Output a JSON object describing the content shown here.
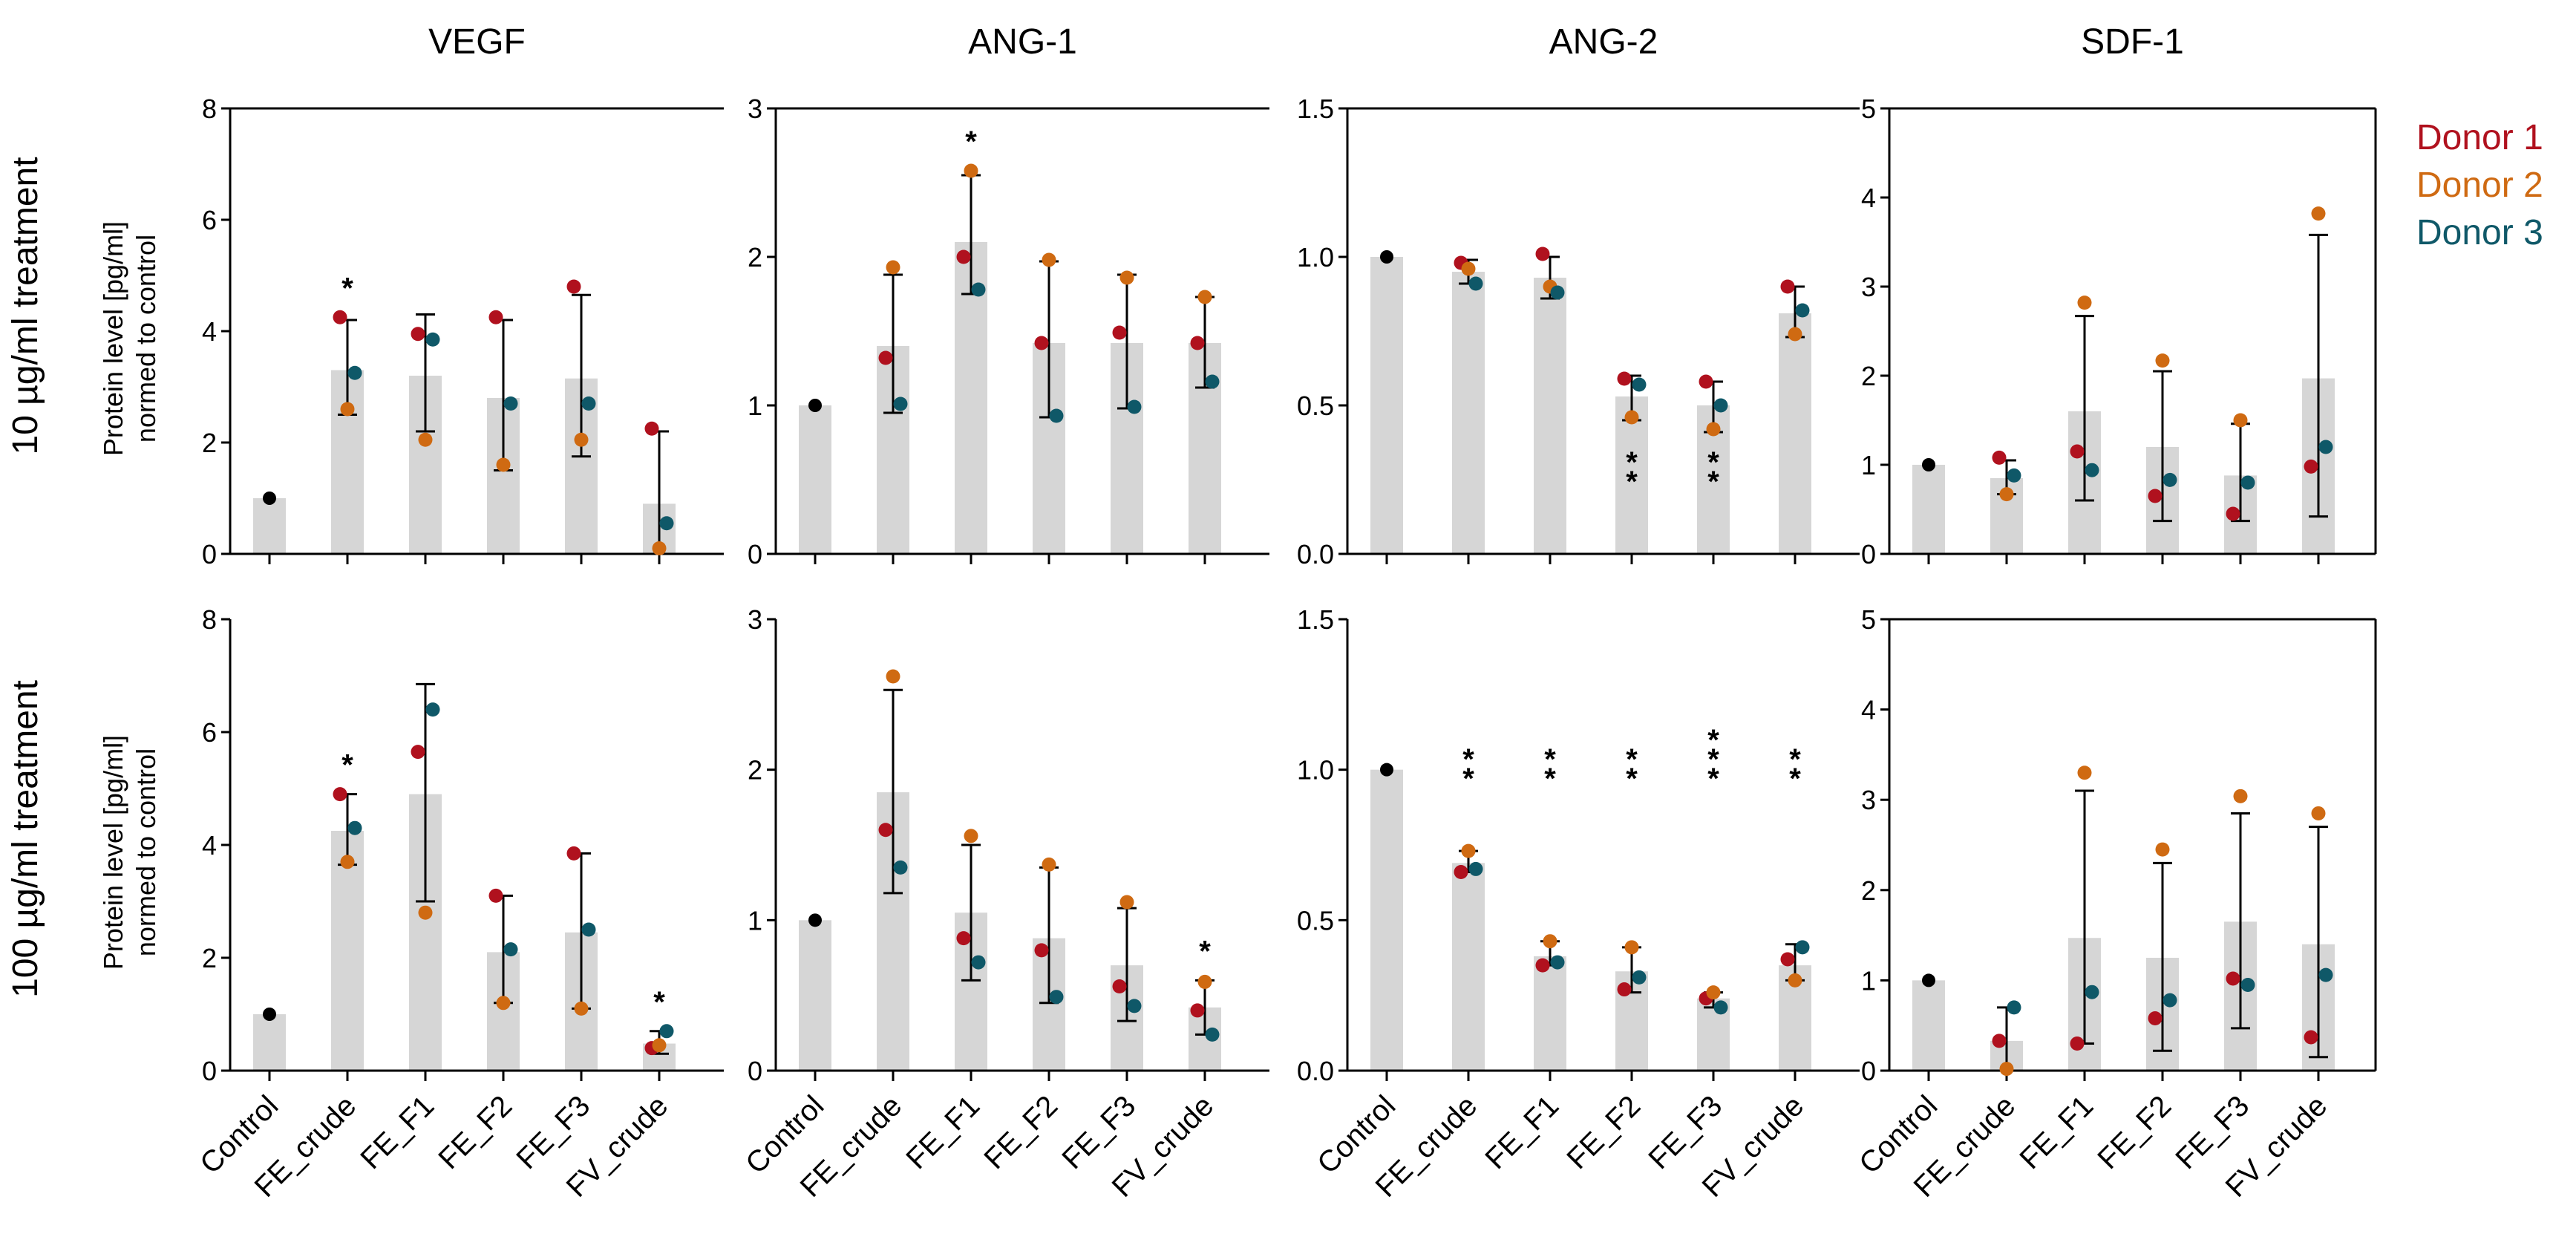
{
  "figure": {
    "row_labels": [
      "10 µg/ml treatment",
      "100 µg/ml treatment"
    ],
    "ylabel_lines": [
      "Protein level [pg/ml]",
      "normed to control"
    ],
    "legend": [
      {
        "label": "Donor 1",
        "color": "#b0111e"
      },
      {
        "label": "Donor 2",
        "color": "#cf6a12"
      },
      {
        "label": "Donor 3",
        "color": "#0f5868"
      }
    ],
    "colors": {
      "bar": "#d6d6d6",
      "control_dot": "#000000",
      "axis": "#000000"
    }
  },
  "chart_data": [
    {
      "type": "bar",
      "title": "VEGF",
      "row": 0,
      "col": 0,
      "categories": [
        "Control",
        "FE_crude",
        "FE_F1",
        "FE_F2",
        "FE_F3",
        "FV_crude"
      ],
      "ylim": [
        0,
        8
      ],
      "yticks": [
        0,
        2,
        4,
        6,
        8
      ],
      "ytick_labels": [
        "0",
        "2",
        "4",
        "6",
        "8"
      ],
      "values": [
        1,
        3.3,
        3.2,
        2.8,
        3.15,
        0.9
      ],
      "err_low": [
        null,
        2.5,
        2.2,
        1.5,
        1.75,
        0.0
      ],
      "err_high": [
        null,
        4.2,
        4.3,
        4.2,
        4.65,
        2.2
      ],
      "donors": [
        [
          null,
          null,
          null
        ],
        [
          4.25,
          2.6,
          3.25
        ],
        [
          3.95,
          2.05,
          3.85
        ],
        [
          4.25,
          1.6,
          2.7
        ],
        [
          4.8,
          2.05,
          2.7
        ],
        [
          2.25,
          0.1,
          0.55
        ]
      ],
      "significance": [
        "",
        "*",
        "",
        "",
        "",
        ""
      ],
      "show_ylabel": true,
      "show_xlabels": false
    },
    {
      "type": "bar",
      "title": "ANG-1",
      "row": 0,
      "col": 1,
      "categories": [
        "Control",
        "FE_crude",
        "FE_F1",
        "FE_F2",
        "FE_F3",
        "FV_crude"
      ],
      "ylim": [
        0,
        3
      ],
      "yticks": [
        0,
        1,
        2,
        3
      ],
      "ytick_labels": [
        "0",
        "1",
        "2",
        "3"
      ],
      "values": [
        1,
        1.4,
        2.1,
        1.42,
        1.42,
        1.42
      ],
      "err_low": [
        null,
        0.95,
        1.75,
        0.92,
        0.98,
        1.12
      ],
      "err_high": [
        null,
        1.88,
        2.55,
        1.97,
        1.88,
        1.73
      ],
      "donors": [
        [
          null,
          null,
          null
        ],
        [
          1.32,
          1.93,
          1.01
        ],
        [
          2.0,
          2.58,
          1.78
        ],
        [
          1.42,
          1.98,
          0.93
        ],
        [
          1.49,
          1.86,
          0.99
        ],
        [
          1.42,
          1.73,
          1.16
        ]
      ],
      "significance": [
        "",
        "",
        "*",
        "",
        "",
        ""
      ],
      "show_ylabel": false,
      "show_xlabels": false
    },
    {
      "type": "bar",
      "title": "ANG-2",
      "row": 0,
      "col": 2,
      "categories": [
        "Control",
        "FE_crude",
        "FE_F1",
        "FE_F2",
        "FE_F3",
        "FV_crude"
      ],
      "ylim": [
        0,
        1.5
      ],
      "yticks": [
        0,
        0.5,
        1.0,
        1.5
      ],
      "ytick_labels": [
        "0.0",
        "0.5",
        "1.0",
        "1.5"
      ],
      "values": [
        1,
        0.95,
        0.93,
        0.53,
        0.5,
        0.81
      ],
      "err_low": [
        null,
        0.91,
        0.86,
        0.45,
        0.41,
        0.73
      ],
      "err_high": [
        null,
        0.99,
        1.0,
        0.6,
        0.58,
        0.9
      ],
      "donors": [
        [
          null,
          null,
          null
        ],
        [
          0.98,
          0.96,
          0.91
        ],
        [
          1.01,
          0.9,
          0.88
        ],
        [
          0.59,
          0.46,
          0.57
        ],
        [
          0.58,
          0.42,
          0.5
        ],
        [
          0.9,
          0.74,
          0.82
        ]
      ],
      "significance": [
        "",
        "",
        "",
        "**",
        "**",
        ""
      ],
      "show_ylabel": false,
      "show_xlabels": false
    },
    {
      "type": "bar",
      "title": "SDF-1",
      "row": 0,
      "col": 3,
      "categories": [
        "Control",
        "FE_crude",
        "FE_F1",
        "FE_F2",
        "FE_F3",
        "FV_crude"
      ],
      "ylim": [
        0,
        5
      ],
      "yticks": [
        0,
        1,
        2,
        3,
        4,
        5
      ],
      "ytick_labels": [
        "0",
        "1",
        "2",
        "3",
        "4",
        "5"
      ],
      "values": [
        1,
        0.85,
        1.6,
        1.2,
        0.88,
        1.97
      ],
      "err_low": [
        null,
        0.67,
        0.6,
        0.37,
        0.37,
        0.42
      ],
      "err_high": [
        null,
        1.05,
        2.67,
        2.05,
        1.46,
        3.58
      ],
      "donors": [
        [
          null,
          null,
          null
        ],
        [
          1.08,
          0.67,
          0.88
        ],
        [
          1.15,
          2.82,
          0.94
        ],
        [
          0.65,
          2.17,
          0.83
        ],
        [
          0.45,
          1.5,
          0.8
        ],
        [
          0.98,
          3.82,
          1.2
        ]
      ],
      "significance": [
        "",
        "",
        "",
        "",
        "",
        ""
      ],
      "show_ylabel": false,
      "show_xlabels": false
    },
    {
      "type": "bar",
      "title": "",
      "row": 1,
      "col": 0,
      "categories": [
        "Control",
        "FE_crude",
        "FE_F1",
        "FE_F2",
        "FE_F3",
        "FV_crude"
      ],
      "ylim": [
        0,
        8
      ],
      "yticks": [
        0,
        2,
        4,
        6,
        8
      ],
      "ytick_labels": [
        "0",
        "2",
        "4",
        "6",
        "8"
      ],
      "values": [
        1,
        4.25,
        4.9,
        2.1,
        2.45,
        0.48
      ],
      "err_low": [
        null,
        3.65,
        3.0,
        1.2,
        1.1,
        0.3
      ],
      "err_high": [
        null,
        4.9,
        6.85,
        3.1,
        3.85,
        0.7
      ],
      "donors": [
        [
          null,
          null,
          null
        ],
        [
          4.9,
          3.7,
          4.3
        ],
        [
          5.65,
          2.8,
          6.4
        ],
        [
          3.1,
          1.2,
          2.15
        ],
        [
          3.85,
          1.1,
          2.5
        ],
        [
          0.4,
          0.45,
          0.7
        ]
      ],
      "significance": [
        "",
        "*",
        "",
        "",
        "",
        "*"
      ],
      "show_ylabel": true,
      "show_xlabels": true
    },
    {
      "type": "bar",
      "title": "",
      "row": 1,
      "col": 1,
      "categories": [
        "Control",
        "FE_crude",
        "FE_F1",
        "FE_F2",
        "FE_F3",
        "FV_crude"
      ],
      "ylim": [
        0,
        3
      ],
      "yticks": [
        0,
        1,
        2,
        3
      ],
      "ytick_labels": [
        "0",
        "1",
        "2",
        "3"
      ],
      "values": [
        1,
        1.85,
        1.05,
        0.88,
        0.7,
        0.42
      ],
      "err_low": [
        null,
        1.18,
        0.6,
        0.45,
        0.33,
        0.24
      ],
      "err_high": [
        null,
        2.53,
        1.5,
        1.35,
        1.08,
        0.6
      ],
      "donors": [
        [
          null,
          null,
          null
        ],
        [
          1.6,
          2.62,
          1.35
        ],
        [
          0.88,
          1.56,
          0.72
        ],
        [
          0.8,
          1.37,
          0.49
        ],
        [
          0.56,
          1.12,
          0.43
        ],
        [
          0.4,
          0.59,
          0.24
        ]
      ],
      "significance": [
        "",
        "",
        "",
        "",
        "",
        "*"
      ],
      "show_ylabel": false,
      "show_xlabels": true
    },
    {
      "type": "bar",
      "title": "",
      "row": 1,
      "col": 2,
      "categories": [
        "Control",
        "FE_crude",
        "FE_F1",
        "FE_F2",
        "FE_F3",
        "FV_crude"
      ],
      "ylim": [
        0,
        1.5
      ],
      "yticks": [
        0,
        0.5,
        1.0,
        1.5
      ],
      "ytick_labels": [
        "0.0",
        "0.5",
        "1.0",
        "1.5"
      ],
      "values": [
        1,
        0.69,
        0.38,
        0.33,
        0.24,
        0.35
      ],
      "err_low": [
        null,
        0.66,
        0.35,
        0.26,
        0.21,
        0.3
      ],
      "err_high": [
        null,
        0.73,
        0.43,
        0.41,
        0.26,
        0.42
      ],
      "donors": [
        [
          null,
          null,
          null
        ],
        [
          0.66,
          0.73,
          0.67
        ],
        [
          0.35,
          0.43,
          0.36
        ],
        [
          0.27,
          0.41,
          0.31
        ],
        [
          0.24,
          0.26,
          0.21
        ],
        [
          0.37,
          0.3,
          0.41
        ]
      ],
      "significance": [
        "",
        "**",
        "**",
        "**",
        "***",
        "**"
      ],
      "show_ylabel": false,
      "show_xlabels": true
    },
    {
      "type": "bar",
      "title": "",
      "row": 1,
      "col": 3,
      "categories": [
        "Control",
        "FE_crude",
        "FE_F1",
        "FE_F2",
        "FE_F3",
        "FV_crude"
      ],
      "ylim": [
        0,
        5
      ],
      "yticks": [
        0,
        1,
        2,
        3,
        4,
        5
      ],
      "ytick_labels": [
        "0",
        "1",
        "2",
        "3",
        "4",
        "5"
      ],
      "values": [
        1,
        0.33,
        1.47,
        1.25,
        1.65,
        1.4
      ],
      "err_low": [
        null,
        0.0,
        0.3,
        0.22,
        0.47,
        0.15
      ],
      "err_high": [
        null,
        0.7,
        3.1,
        2.3,
        2.85,
        2.7
      ],
      "donors": [
        [
          null,
          null,
          null
        ],
        [
          0.33,
          0.02,
          0.7
        ],
        [
          0.3,
          3.3,
          0.87
        ],
        [
          0.58,
          2.45,
          0.78
        ],
        [
          1.02,
          3.04,
          0.95
        ],
        [
          0.37,
          2.85,
          1.06
        ]
      ],
      "significance": [
        "",
        "",
        "",
        "",
        "",
        ""
      ],
      "show_ylabel": false,
      "show_xlabels": true
    }
  ]
}
